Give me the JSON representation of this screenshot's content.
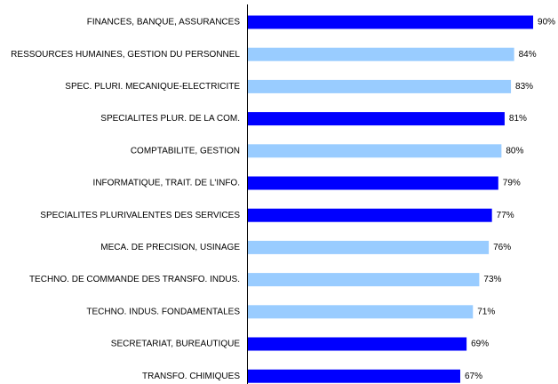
{
  "chart_data": {
    "type": "barh",
    "categories": [
      "FINANCES, BANQUE, ASSURANCES",
      "RESSOURCES HUMAINES, GESTION DU PERSONNEL",
      "SPEC. PLURI. MECANIQUE-ELECTRICITE",
      "SPECIALITES PLUR. DE LA COM.",
      "COMPTABILITE, GESTION",
      "INFORMATIQUE, TRAIT. DE L'INFO.",
      "SPECIALITES PLURIVALENTES DES SERVICES",
      "MECA. DE PRECISION, USINAGE",
      "TECHNO. DE COMMANDE DES TRANSFO. INDUS.",
      "TECHNO. INDUS. FONDAMENTALES",
      "SECRETARIAT, BUREAUTIQUE",
      "TRANSFO. CHIMIQUES"
    ],
    "values": [
      90,
      84,
      83,
      81,
      80,
      79,
      77,
      76,
      73,
      71,
      69,
      67
    ],
    "value_labels": [
      "90%",
      "84%",
      "83%",
      "81%",
      "80%",
      "79%",
      "77%",
      "76%",
      "73%",
      "71%",
      "69%",
      "67%"
    ],
    "colors": [
      "#0000ff",
      "#99ccff",
      "#99ccff",
      "#0000ff",
      "#99ccff",
      "#0000ff",
      "#0000ff",
      "#99ccff",
      "#99ccff",
      "#99ccff",
      "#0000ff",
      "#0000ff"
    ]
  }
}
